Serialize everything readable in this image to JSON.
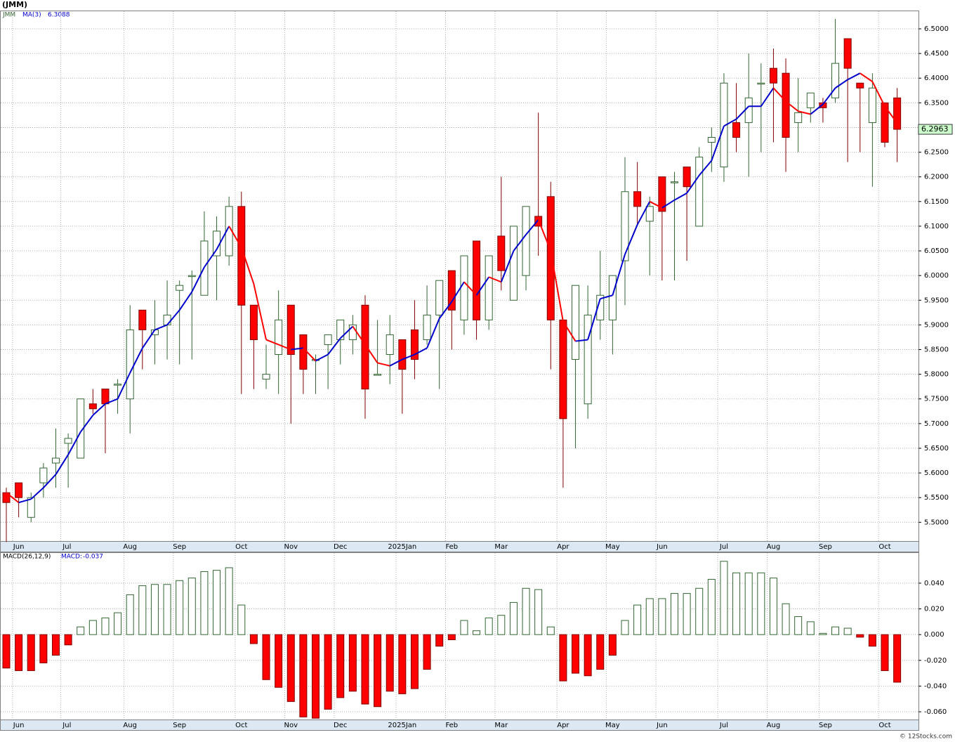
{
  "chart_data": [
    {
      "type": "candlestick",
      "title": "(JMM)",
      "symbol": "JMM",
      "up_color": "#336633",
      "down_color": "#ff0000",
      "ylim": [
        5.462,
        6.537
      ],
      "yticks": [
        {
          "value": 5.5,
          "label": "5.5000"
        },
        {
          "value": 5.55,
          "label": "5.5500"
        },
        {
          "value": 5.6,
          "label": "5.6000"
        },
        {
          "value": 5.65,
          "label": "5.6500"
        },
        {
          "value": 5.7,
          "label": "5.7000"
        },
        {
          "value": 5.75,
          "label": "5.7500"
        },
        {
          "value": 5.8,
          "label": "5.8000"
        },
        {
          "value": 5.85,
          "label": "5.8500"
        },
        {
          "value": 5.9,
          "label": "5.9000"
        },
        {
          "value": 5.95,
          "label": "5.9500"
        },
        {
          "value": 6.0,
          "label": "6.0000"
        },
        {
          "value": 6.05,
          "label": "6.0500"
        },
        {
          "value": 6.1,
          "label": "6.1000"
        },
        {
          "value": 6.15,
          "label": "6.1500"
        },
        {
          "value": 6.2,
          "label": "6.2000"
        },
        {
          "value": 6.25,
          "label": "6.2500"
        },
        {
          "value": 6.3,
          "label": "6.3000"
        },
        {
          "value": 6.35,
          "label": "6.3500"
        },
        {
          "value": 6.4,
          "label": "6.4000"
        },
        {
          "value": 6.45,
          "label": "6.4500"
        },
        {
          "value": 6.5,
          "label": "6.5000"
        }
      ],
      "xticks": [
        {
          "value": 1,
          "label": "Jun"
        },
        {
          "value": 4.9,
          "label": "Jul"
        },
        {
          "value": 10,
          "label": "Aug"
        },
        {
          "value": 14,
          "label": "Sep"
        },
        {
          "value": 19,
          "label": "Oct"
        },
        {
          "value": 23,
          "label": "Nov"
        },
        {
          "value": 27,
          "label": "Dec"
        },
        {
          "value": 32,
          "label": "2025Jan"
        },
        {
          "value": 36,
          "label": "Feb"
        },
        {
          "value": 40,
          "label": "Mar"
        },
        {
          "value": 45,
          "label": "Apr"
        },
        {
          "value": 49,
          "label": "May"
        },
        {
          "value": 53,
          "label": "Jun"
        },
        {
          "value": 58,
          "label": "Jul"
        },
        {
          "value": 62,
          "label": "Aug"
        },
        {
          "value": 66.2,
          "label": "Sep"
        },
        {
          "value": 71,
          "label": "Oct"
        }
      ],
      "open": [
        5.56,
        5.58,
        5.51,
        5.58,
        5.62,
        5.66,
        5.63,
        5.74,
        5.77,
        5.78,
        5.75,
        5.93,
        5.88,
        5.9,
        5.97,
        6.0,
        5.96,
        6.04,
        6.04,
        6.14,
        5.94,
        5.79,
        5.84,
        5.94,
        5.88,
        5.83,
        5.86,
        5.87,
        5.87,
        5.94,
        5.8,
        5.84,
        5.87,
        5.89,
        5.87,
        5.92,
        6.01,
        5.91,
        6.07,
        5.91,
        6.08,
        5.95,
        6.0,
        6.12,
        6.16,
        5.91,
        5.83,
        5.74,
        5.91,
        5.91,
        6.03,
        6.17,
        6.11,
        6.2,
        6.19,
        6.22,
        6.1,
        6.27,
        6.22,
        6.31,
        6.31,
        6.39,
        6.42,
        6.41,
        6.31,
        6.34,
        6.35,
        6.36,
        6.48,
        6.39,
        6.31,
        6.35,
        6.36
      ],
      "high": [
        5.57,
        5.58,
        5.56,
        5.62,
        5.69,
        5.68,
        5.75,
        5.77,
        5.77,
        5.79,
        5.94,
        5.93,
        5.95,
        5.99,
        5.99,
        6.01,
        6.13,
        6.12,
        6.16,
        6.17,
        5.94,
        5.86,
        5.97,
        5.94,
        5.88,
        5.84,
        5.88,
        5.91,
        5.92,
        5.96,
        5.91,
        5.92,
        5.87,
        5.95,
        5.98,
        5.99,
        6.01,
        6.04,
        6.07,
        6.04,
        6.2,
        6.1,
        6.14,
        6.33,
        6.19,
        5.91,
        5.98,
        5.98,
        6.05,
        6.0,
        6.24,
        6.23,
        6.16,
        6.2,
        6.21,
        6.22,
        6.26,
        6.3,
        6.41,
        6.39,
        6.45,
        6.43,
        6.46,
        6.44,
        6.4,
        6.37,
        6.36,
        6.52,
        6.48,
        6.39,
        6.41,
        6.35,
        6.38
      ],
      "low": [
        5.46,
        5.51,
        5.5,
        5.55,
        5.57,
        5.57,
        5.63,
        5.72,
        5.64,
        5.72,
        5.68,
        5.81,
        5.82,
        5.83,
        5.82,
        5.83,
        5.96,
        5.95,
        6.02,
        5.76,
        5.77,
        5.77,
        5.76,
        5.7,
        5.76,
        5.76,
        5.77,
        5.82,
        5.84,
        5.71,
        5.8,
        5.78,
        5.72,
        5.79,
        5.86,
        5.77,
        5.85,
        5.88,
        5.87,
        5.89,
        5.97,
        5.95,
        5.97,
        6.04,
        5.81,
        5.57,
        5.65,
        5.71,
        5.87,
        5.84,
        5.94,
        6.1,
        6.0,
        5.99,
        5.99,
        6.03,
        6.1,
        6.21,
        6.19,
        6.25,
        6.2,
        6.25,
        6.27,
        6.21,
        6.25,
        6.31,
        6.31,
        6.35,
        6.23,
        6.25,
        6.18,
        6.26,
        6.23
      ],
      "close": [
        5.54,
        5.55,
        5.55,
        5.61,
        5.63,
        5.67,
        5.75,
        5.73,
        5.74,
        5.78,
        5.89,
        5.89,
        5.89,
        5.92,
        5.98,
        6.0,
        6.07,
        6.09,
        6.14,
        5.94,
        5.87,
        5.8,
        5.91,
        5.84,
        5.81,
        5.83,
        5.88,
        5.91,
        5.9,
        5.77,
        5.8,
        5.88,
        5.81,
        5.83,
        5.92,
        5.99,
        5.93,
        6.04,
        5.91,
        6.04,
        6.01,
        6.1,
        6.14,
        6.1,
        5.91,
        5.71,
        5.98,
        5.92,
        5.96,
        6.0,
        6.17,
        6.14,
        6.14,
        6.13,
        6.19,
        6.18,
        6.24,
        6.28,
        6.39,
        6.28,
        6.36,
        6.39,
        6.39,
        6.28,
        6.33,
        6.37,
        6.34,
        6.43,
        6.42,
        6.38,
        6.38,
        6.27,
        6.2963
      ],
      "ma": {
        "name": "MA(3)",
        "up_color": "#0000cc",
        "down_color": "#ff0000",
        "values": [
          5.56,
          5.54,
          5.547,
          5.57,
          5.597,
          5.637,
          5.683,
          5.717,
          5.74,
          5.75,
          5.803,
          5.853,
          5.89,
          5.9,
          5.93,
          5.967,
          6.017,
          6.053,
          6.1,
          6.057,
          5.983,
          5.87,
          5.86,
          5.85,
          5.853,
          5.827,
          5.84,
          5.873,
          5.897,
          5.86,
          5.823,
          5.817,
          5.83,
          5.84,
          5.853,
          5.913,
          5.947,
          5.987,
          5.96,
          5.997,
          5.987,
          6.05,
          6.083,
          6.113,
          6.05,
          5.907,
          5.867,
          5.87,
          5.953,
          5.96,
          6.043,
          6.103,
          6.15,
          6.137,
          6.153,
          6.167,
          6.203,
          6.233,
          6.303,
          6.317,
          6.343,
          6.343,
          6.38,
          6.353,
          6.333,
          6.327,
          6.347,
          6.38,
          6.397,
          6.41,
          6.393,
          6.343,
          6.3088
        ]
      }
    },
    {
      "type": "bar",
      "name": "MACD(26,12,9)",
      "value_name": "MACD:",
      "up_color": "#336633",
      "down_color": "#ff0000",
      "ylim": [
        -0.066,
        0.064
      ],
      "yticks": [
        {
          "value": -0.06,
          "label": "-0.060"
        },
        {
          "value": -0.04,
          "label": "-0.040"
        },
        {
          "value": -0.02,
          "label": "-0.020"
        },
        {
          "value": 0,
          "label": "0.000"
        },
        {
          "value": 0.02,
          "label": "0.020"
        },
        {
          "value": 0.04,
          "label": "0.040"
        }
      ],
      "xticks": [
        {
          "value": 1,
          "label": "Jun"
        },
        {
          "value": 4.9,
          "label": "Jul"
        },
        {
          "value": 10,
          "label": "Aug"
        },
        {
          "value": 14,
          "label": "Sep"
        },
        {
          "value": 19,
          "label": "Oct"
        },
        {
          "value": 23,
          "label": "Nov"
        },
        {
          "value": 27,
          "label": "Dec"
        },
        {
          "value": 32,
          "label": "2025Jan"
        },
        {
          "value": 36,
          "label": "Feb"
        },
        {
          "value": 40,
          "label": "Mar"
        },
        {
          "value": 45,
          "label": "Apr"
        },
        {
          "value": 49,
          "label": "May"
        },
        {
          "value": 53,
          "label": "Jun"
        },
        {
          "value": 58,
          "label": "Jul"
        },
        {
          "value": 62,
          "label": "Aug"
        },
        {
          "value": 66.2,
          "label": "Sep"
        },
        {
          "value": 71,
          "label": "Oct"
        }
      ],
      "values": [
        -0.026,
        -0.028,
        -0.028,
        -0.022,
        -0.016,
        -0.008,
        0.006,
        0.011,
        0.013,
        0.017,
        0.031,
        0.038,
        0.039,
        0.039,
        0.042,
        0.044,
        0.049,
        0.05,
        0.052,
        0.023,
        -0.007,
        -0.035,
        -0.041,
        -0.052,
        -0.064,
        -0.065,
        -0.058,
        -0.049,
        -0.044,
        -0.054,
        -0.056,
        -0.044,
        -0.046,
        -0.042,
        -0.027,
        -0.009,
        -0.004,
        0.011,
        0.003,
        0.013,
        0.015,
        0.025,
        0.036,
        0.035,
        0.006,
        -0.036,
        -0.03,
        -0.032,
        -0.027,
        -0.016,
        0.011,
        0.023,
        0.028,
        0.028,
        0.032,
        0.032,
        0.036,
        0.043,
        0.057,
        0.048,
        0.048,
        0.048,
        0.044,
        0.024,
        0.014,
        0.01,
        0.001,
        0.006,
        0.005,
        -0.002,
        -0.009,
        -0.028,
        -0.037
      ]
    }
  ],
  "footer": "© 12Stocks.com"
}
